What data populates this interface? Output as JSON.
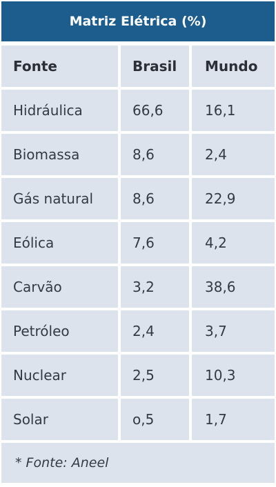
{
  "table": {
    "title": "Matriz Elétrica (%)",
    "headers": [
      "Fonte",
      "Brasil",
      "Mundo"
    ],
    "rows": [
      [
        "Hidráulica",
        "66,6",
        "16,1"
      ],
      [
        "Biomassa",
        "8,6",
        "2,4"
      ],
      [
        "Gás natural",
        "8,6",
        "22,9"
      ],
      [
        "Eólica",
        "7,6",
        "4,2"
      ],
      [
        "Carvão",
        "3,2",
        "38,6"
      ],
      [
        "Petróleo",
        "2,4",
        "3,7"
      ],
      [
        "Nuclear",
        "2,5",
        "10,3"
      ],
      [
        "Solar",
        "o,5",
        "1,7"
      ]
    ],
    "footnote": "* Fonte: Aneel"
  },
  "colors": {
    "title_bg": "#1c5d8e",
    "cell_bg": "#dde3ec",
    "text": "#333a45"
  }
}
